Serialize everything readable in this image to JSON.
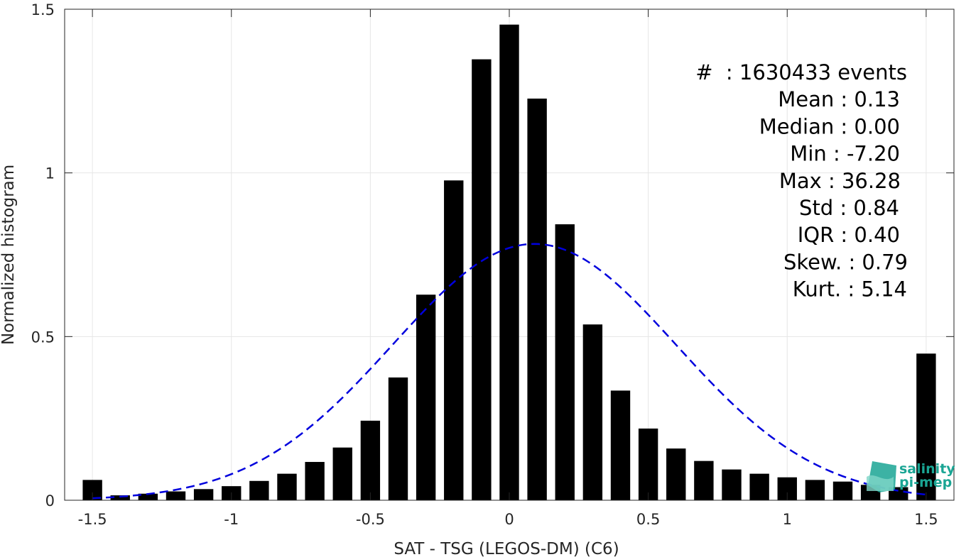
{
  "chart_data": {
    "type": "bar",
    "xlabel": "SAT - TSG (LEGOS-DM) (C6)",
    "ylabel": "Normalized histogram",
    "xlim": [
      -1.6,
      1.6
    ],
    "ylim": [
      0,
      1.5
    ],
    "xticks": [
      -1.5,
      -1,
      -0.5,
      0,
      0.5,
      1,
      1.5
    ],
    "xtick_labels": [
      "-1.5",
      "-1",
      "-0.5",
      "0",
      "0.5",
      "1",
      "1.5"
    ],
    "yticks": [
      0,
      0.5,
      1,
      1.5
    ],
    "ytick_labels": [
      "0",
      "0.5",
      "1",
      "1.5"
    ],
    "grid": true,
    "bar_width": 0.07,
    "bar_color": "#000000",
    "x": [
      -1.5,
      -1.4,
      -1.3,
      -1.2,
      -1.1,
      -1.0,
      -0.9,
      -0.8,
      -0.7,
      -0.6,
      -0.5,
      -0.4,
      -0.3,
      -0.2,
      -0.1,
      0.0,
      0.1,
      0.2,
      0.3,
      0.4,
      0.5,
      0.6,
      0.7,
      0.8,
      0.9,
      1.0,
      1.1,
      1.2,
      1.3,
      1.4,
      1.5
    ],
    "values": [
      0.062,
      0.015,
      0.02,
      0.027,
      0.034,
      0.043,
      0.059,
      0.081,
      0.117,
      0.161,
      0.243,
      0.375,
      0.628,
      0.977,
      1.347,
      1.453,
      1.227,
      0.843,
      0.537,
      0.335,
      0.219,
      0.158,
      0.12,
      0.094,
      0.081,
      0.07,
      0.062,
      0.057,
      0.047,
      0.04,
      0.448
    ],
    "fit_curve": {
      "style": "dashed",
      "color": "#0000dd",
      "mean": 0.09,
      "std": 0.51,
      "peak": 0.783,
      "x_range": [
        -1.5,
        1.5
      ]
    },
    "annotation_lines": [
      "#  : 1630433 events",
      "Mean : 0.13",
      "Median : 0.00",
      "Min : -7.20",
      "Max : 36.28",
      "Std : 0.84",
      "IQR : 0.40",
      "Skew. : 0.79",
      "Kurt. : 5.14"
    ]
  },
  "logo": {
    "line1": "salinity",
    "line2": "pi-mep",
    "color": "#1aa594"
  }
}
